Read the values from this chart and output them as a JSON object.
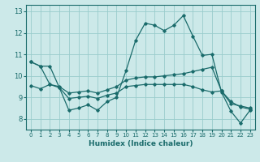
{
  "xlabel": "Humidex (Indice chaleur)",
  "bg_color": "#cce9e9",
  "line_color": "#1a6b6b",
  "grid_color": "#99cccc",
  "xlim": [
    -0.5,
    23.5
  ],
  "ylim": [
    7.5,
    13.3
  ],
  "xticks": [
    0,
    1,
    2,
    3,
    4,
    5,
    6,
    7,
    8,
    9,
    10,
    11,
    12,
    13,
    14,
    15,
    16,
    17,
    18,
    19,
    20,
    21,
    22,
    23
  ],
  "yticks": [
    8,
    9,
    10,
    11,
    12,
    13
  ],
  "line1_y": [
    10.65,
    10.45,
    10.45,
    9.45,
    8.4,
    8.5,
    8.65,
    8.4,
    8.8,
    9.0,
    10.25,
    11.65,
    12.45,
    12.35,
    12.1,
    12.35,
    12.8,
    11.85,
    10.95,
    11.0,
    9.25,
    8.35,
    7.8,
    8.4
  ],
  "line2_y": [
    10.65,
    10.45,
    9.6,
    9.5,
    9.2,
    9.25,
    9.3,
    9.2,
    9.35,
    9.5,
    9.8,
    9.9,
    9.95,
    9.95,
    10.0,
    10.05,
    10.1,
    10.2,
    10.3,
    10.4,
    9.3,
    8.7,
    8.6,
    8.5
  ],
  "line3_y": [
    9.55,
    9.4,
    9.6,
    9.45,
    8.95,
    9.0,
    9.05,
    8.95,
    9.1,
    9.2,
    9.5,
    9.55,
    9.6,
    9.6,
    9.6,
    9.6,
    9.6,
    9.5,
    9.35,
    9.25,
    9.3,
    8.8,
    8.55,
    8.45
  ]
}
